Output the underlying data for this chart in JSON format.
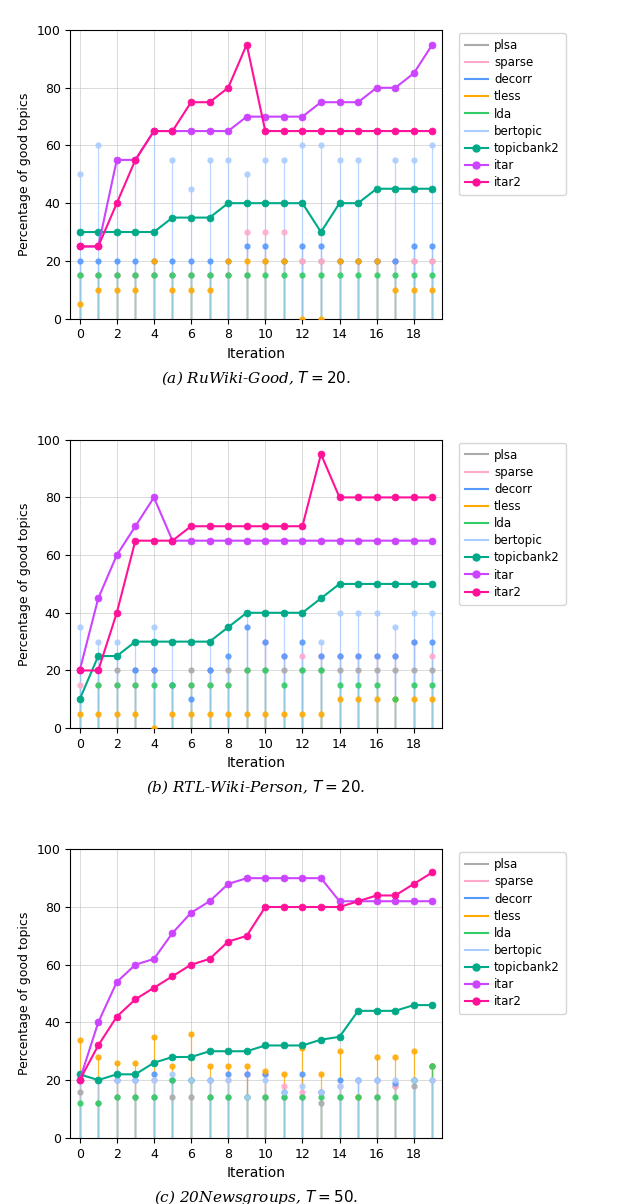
{
  "iterations": [
    0,
    1,
    2,
    3,
    4,
    5,
    6,
    7,
    8,
    9,
    10,
    11,
    12,
    13,
    14,
    15,
    16,
    17,
    18,
    19
  ],
  "panel_a": {
    "title": "(a) RuWiki-Good, $T = 20$.",
    "plsa": [
      15,
      15,
      15,
      15,
      15,
      15,
      15,
      15,
      15,
      15,
      20,
      20,
      20,
      20,
      20,
      20,
      20,
      20,
      20,
      20
    ],
    "sparse": [
      15,
      15,
      15,
      15,
      15,
      15,
      15,
      15,
      15,
      30,
      30,
      30,
      20,
      20,
      20,
      20,
      20,
      20,
      20,
      20
    ],
    "decorr": [
      20,
      20,
      20,
      20,
      20,
      20,
      20,
      20,
      20,
      25,
      25,
      20,
      25,
      25,
      20,
      20,
      20,
      20,
      25,
      25
    ],
    "tless": [
      5,
      10,
      10,
      10,
      20,
      10,
      10,
      10,
      20,
      20,
      20,
      20,
      0,
      0,
      20,
      20,
      20,
      10,
      10,
      10
    ],
    "lda": [
      15,
      15,
      15,
      15,
      15,
      15,
      15,
      15,
      15,
      15,
      15,
      15,
      15,
      15,
      15,
      15,
      15,
      15,
      15,
      15
    ],
    "bertopic": [
      50,
      60,
      55,
      55,
      65,
      55,
      45,
      55,
      55,
      50,
      55,
      55,
      60,
      60,
      55,
      55,
      65,
      55,
      55,
      60
    ],
    "topicbank2": [
      30,
      30,
      30,
      30,
      30,
      35,
      35,
      35,
      40,
      40,
      40,
      40,
      40,
      30,
      40,
      40,
      45,
      45,
      45,
      45
    ],
    "itar": [
      25,
      25,
      55,
      55,
      65,
      65,
      65,
      65,
      65,
      70,
      70,
      70,
      70,
      75,
      75,
      75,
      80,
      80,
      85,
      95
    ],
    "itar2": [
      25,
      25,
      40,
      55,
      65,
      65,
      75,
      75,
      80,
      95,
      65,
      65,
      65,
      65,
      65,
      65,
      65,
      65,
      65,
      65
    ]
  },
  "panel_b": {
    "title": "(b) RTL-Wiki-Person, $T = 20$.",
    "plsa": [
      10,
      20,
      20,
      20,
      20,
      15,
      20,
      20,
      20,
      20,
      20,
      20,
      20,
      20,
      20,
      20,
      20,
      20,
      20,
      20
    ],
    "sparse": [
      15,
      15,
      15,
      15,
      20,
      15,
      15,
      15,
      15,
      20,
      30,
      25,
      25,
      25,
      25,
      25,
      25,
      25,
      30,
      25
    ],
    "decorr": [
      20,
      20,
      25,
      20,
      20,
      15,
      10,
      20,
      25,
      35,
      30,
      25,
      30,
      25,
      25,
      25,
      25,
      25,
      30,
      30
    ],
    "tless": [
      5,
      5,
      5,
      5,
      0,
      5,
      5,
      5,
      5,
      5,
      5,
      5,
      5,
      5,
      10,
      10,
      10,
      10,
      10,
      10
    ],
    "lda": [
      10,
      15,
      15,
      15,
      15,
      15,
      15,
      15,
      15,
      20,
      20,
      15,
      20,
      20,
      15,
      15,
      15,
      10,
      15,
      15
    ],
    "bertopic": [
      35,
      30,
      30,
      30,
      35,
      30,
      30,
      30,
      35,
      40,
      40,
      40,
      40,
      30,
      40,
      40,
      40,
      35,
      40,
      40
    ],
    "topicbank2": [
      10,
      25,
      25,
      30,
      30,
      30,
      30,
      30,
      35,
      40,
      40,
      40,
      40,
      45,
      50,
      50,
      50,
      50,
      50,
      50
    ],
    "itar": [
      20,
      45,
      60,
      70,
      80,
      65,
      65,
      65,
      65,
      65,
      65,
      65,
      65,
      65,
      65,
      65,
      65,
      65,
      65,
      65
    ],
    "itar2": [
      20,
      20,
      40,
      65,
      65,
      65,
      70,
      70,
      70,
      70,
      70,
      70,
      70,
      95,
      80,
      80,
      80,
      80,
      80,
      80
    ]
  },
  "panel_c": {
    "title": "(c) 20Newsgroups, $T = 50$.",
    "plsa": [
      16,
      12,
      14,
      14,
      14,
      14,
      14,
      14,
      14,
      14,
      14,
      14,
      14,
      12,
      14,
      14,
      14,
      18,
      18,
      20
    ],
    "sparse": [
      20,
      20,
      20,
      20,
      20,
      20,
      20,
      20,
      20,
      22,
      22,
      18,
      16,
      16,
      18,
      20,
      20,
      18,
      20,
      25
    ],
    "decorr": [
      20,
      20,
      20,
      20,
      22,
      20,
      20,
      20,
      22,
      22,
      22,
      16,
      22,
      16,
      20,
      20,
      20,
      19,
      20,
      25
    ],
    "tless": [
      34,
      28,
      26,
      26,
      35,
      25,
      36,
      25,
      25,
      25,
      23,
      22,
      31,
      22,
      30,
      14,
      28,
      28,
      30,
      25
    ],
    "lda": [
      12,
      12,
      14,
      14,
      14,
      20,
      20,
      14,
      14,
      14,
      14,
      14,
      14,
      14,
      14,
      14,
      14,
      14,
      20,
      25
    ],
    "bertopic": [
      20,
      20,
      20,
      20,
      20,
      22,
      20,
      20,
      20,
      14,
      20,
      16,
      18,
      16,
      18,
      20,
      20,
      20,
      20,
      20
    ],
    "topicbank2": [
      22,
      20,
      22,
      22,
      26,
      28,
      28,
      30,
      30,
      30,
      32,
      32,
      32,
      34,
      35,
      44,
      44,
      44,
      46,
      46
    ],
    "itar": [
      20,
      40,
      54,
      60,
      62,
      71,
      78,
      82,
      88,
      90,
      90,
      90,
      90,
      90,
      82,
      82,
      82,
      82,
      82,
      82
    ],
    "itar2": [
      20,
      32,
      42,
      48,
      52,
      56,
      60,
      62,
      68,
      70,
      80,
      80,
      80,
      80,
      80,
      82,
      84,
      84,
      88,
      92
    ]
  },
  "colors": {
    "plsa": "#aaaaaa",
    "sparse": "#ffaacc",
    "decorr": "#5599ff",
    "tless": "#ffaa00",
    "lda": "#33cc66",
    "bertopic": "#aaccff",
    "topicbank2": "#00aa88",
    "itar": "#cc44ff",
    "itar2": "#ff1199"
  },
  "legend_labels": [
    "plsa",
    "sparse",
    "decorr",
    "tless",
    "lda",
    "bertopic",
    "topicbank2",
    "itar",
    "itar2"
  ],
  "connected_series": [
    "topicbank2",
    "itar",
    "itar2"
  ],
  "lollipop_series": [
    "plsa",
    "sparse",
    "decorr",
    "tless",
    "lda",
    "bertopic"
  ],
  "ylim": [
    0,
    100
  ],
  "ylabel": "Percentage of good topics",
  "xlabel": "Iteration",
  "yticks": [
    0,
    20,
    40,
    60,
    80,
    100
  ]
}
